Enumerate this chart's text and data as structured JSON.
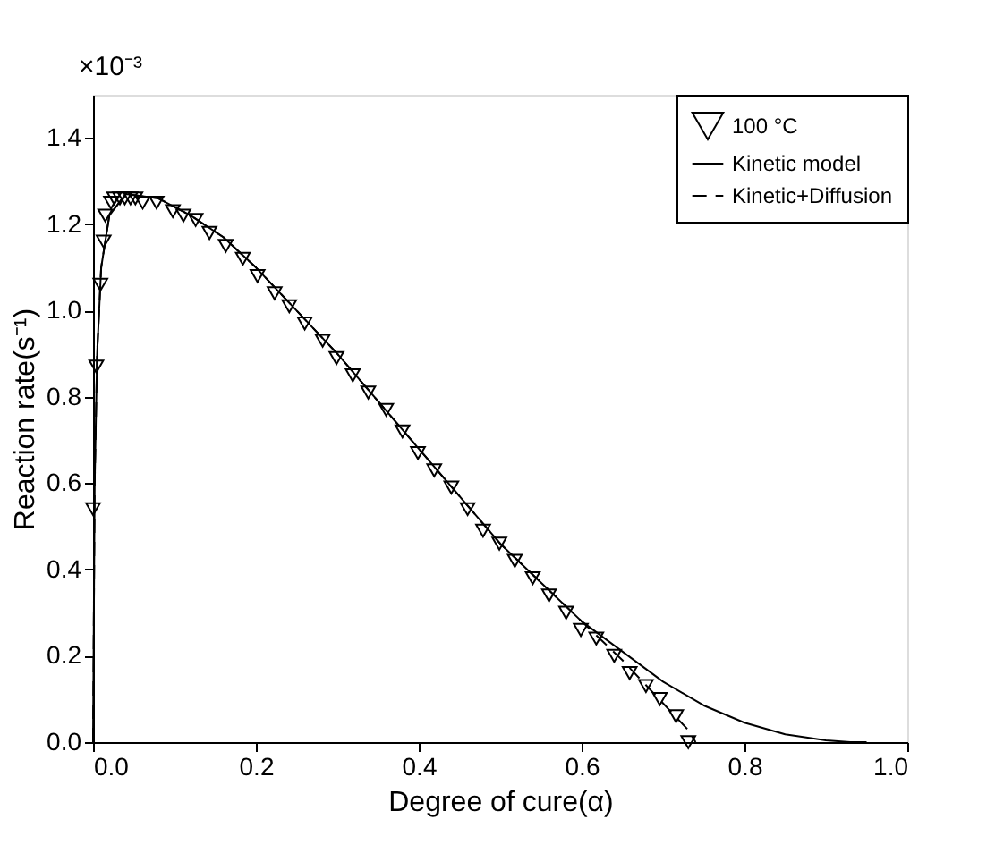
{
  "chart_data": {
    "type": "scatter",
    "xlabel": "Degree of cure(α)",
    "ylabel": "Reaction rate(s⁻¹)",
    "annotations": [
      "×10⁻³"
    ],
    "xlim": [
      0,
      1
    ],
    "xticks": [
      {
        "value": 0,
        "label": "0.0"
      },
      0.2,
      0.4,
      0.6,
      0.8,
      {
        "value": 1,
        "label": "1.0"
      }
    ],
    "ylim": [
      0,
      1.5
    ],
    "yticks": [
      {
        "value": 0,
        "label": "0.0"
      },
      0.2,
      0.4,
      0.6,
      0.8,
      {
        "value": 1,
        "label": "1.0"
      },
      1.2,
      1.4
    ],
    "grid": false,
    "legend": "top right",
    "series": [
      {
        "name": "100  °C",
        "type": "scatter",
        "marker": "triangle",
        "color": "#000000",
        "x": [
          0.0,
          0.004,
          0.009,
          0.013,
          0.015,
          0.022,
          0.026,
          0.033,
          0.039,
          0.046,
          0.052,
          0.061,
          0.078,
          0.098,
          0.111,
          0.126,
          0.143,
          0.163,
          0.184,
          0.202,
          0.223,
          0.241,
          0.26,
          0.282,
          0.299,
          0.319,
          0.338,
          0.36,
          0.38,
          0.399,
          0.419,
          0.44,
          0.46,
          0.479,
          0.499,
          0.518,
          0.54,
          0.56,
          0.581,
          0.599,
          0.618,
          0.64,
          0.659,
          0.679,
          0.696,
          0.716,
          0.731
        ],
        "values": [
          0.54,
          0.87,
          1.06,
          1.16,
          1.22,
          1.25,
          1.26,
          1.26,
          1.26,
          1.26,
          1.26,
          1.25,
          1.25,
          1.23,
          1.22,
          1.21,
          1.18,
          1.15,
          1.12,
          1.08,
          1.04,
          1.01,
          0.97,
          0.93,
          0.89,
          0.85,
          0.81,
          0.77,
          0.72,
          0.67,
          0.63,
          0.59,
          0.54,
          0.49,
          0.46,
          0.42,
          0.38,
          0.34,
          0.3,
          0.26,
          0.24,
          0.2,
          0.16,
          0.13,
          0.1,
          0.06,
          0.0
        ]
      },
      {
        "name": "Kinetic model",
        "type": "line",
        "line_style": "solid",
        "color": "#000000",
        "x": [
          0,
          0.002,
          0.005,
          0.01,
          0.02,
          0.04,
          0.08,
          0.12,
          0.16,
          0.2,
          0.25,
          0.3,
          0.35,
          0.4,
          0.45,
          0.5,
          0.55,
          0.6,
          0.65,
          0.7,
          0.75,
          0.8,
          0.85,
          0.9,
          0.93,
          0.95
        ],
        "values": [
          0,
          0.6,
          0.9,
          1.1,
          1.22,
          1.27,
          1.26,
          1.22,
          1.17,
          1.1,
          1.0,
          0.9,
          0.79,
          0.68,
          0.57,
          0.46,
          0.37,
          0.28,
          0.21,
          0.14,
          0.085,
          0.045,
          0.018,
          0.004,
          0.0,
          0.0
        ]
      },
      {
        "name": "Kinetic+Diffusion",
        "type": "line",
        "line_style": "dashed",
        "color": "#000000",
        "x": [
          0,
          0.002,
          0.005,
          0.01,
          0.02,
          0.04,
          0.08,
          0.12,
          0.16,
          0.2,
          0.25,
          0.3,
          0.35,
          0.4,
          0.45,
          0.5,
          0.55,
          0.6,
          0.65,
          0.7,
          0.73,
          0.74
        ],
        "values": [
          0,
          0.6,
          0.9,
          1.1,
          1.22,
          1.27,
          1.26,
          1.22,
          1.17,
          1.1,
          1.0,
          0.9,
          0.79,
          0.68,
          0.57,
          0.46,
          0.37,
          0.28,
          0.19,
          0.09,
          0.03,
          0.0
        ]
      }
    ]
  }
}
